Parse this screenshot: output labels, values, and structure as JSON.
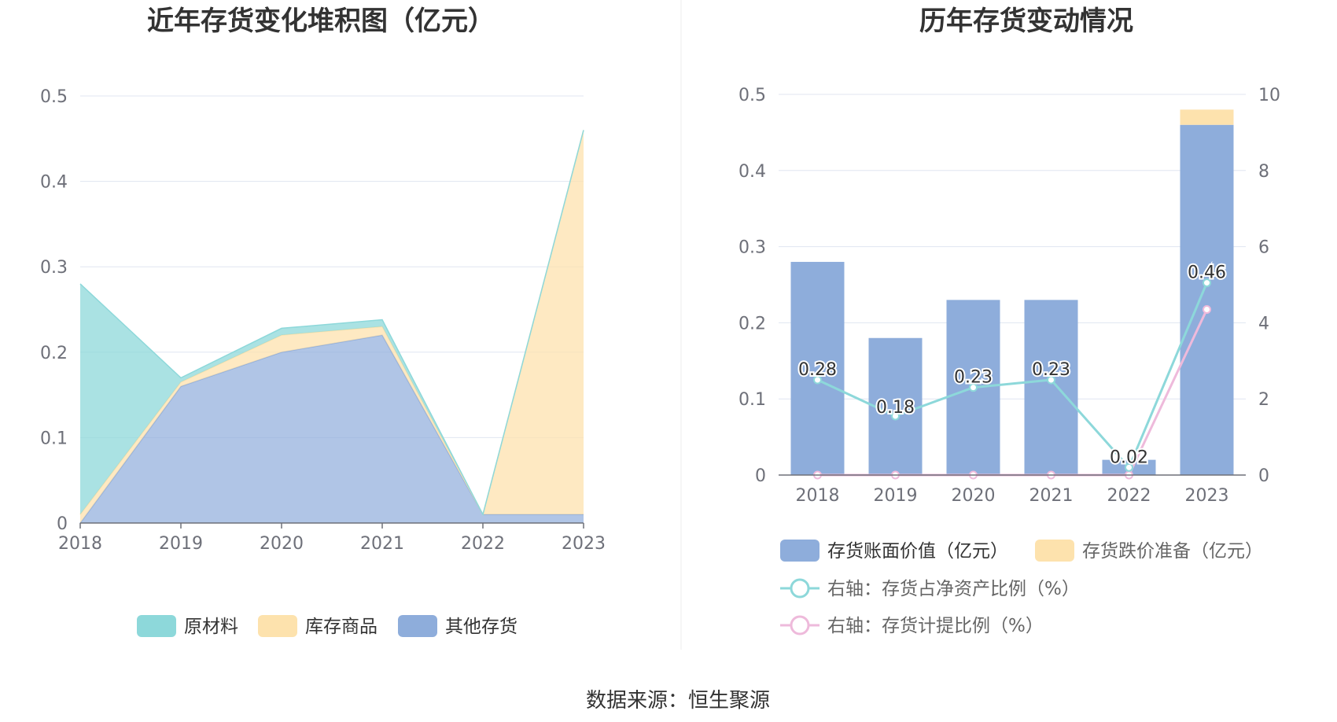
{
  "colors": {
    "raw": "#8dd8da",
    "goods": "#fde2ad",
    "other": "#8eaddb",
    "book": "#8eaddb",
    "reserve": "#fde2ad",
    "ratio_net": "#8dd8da",
    "ratio_prov": "#eebadb"
  },
  "source_text": "数据来源：恒生聚源",
  "chart_data": [
    {
      "type": "area",
      "title": "近年存货变化堆积图（亿元）",
      "x": [
        "2018",
        "2019",
        "2020",
        "2021",
        "2022",
        "2023"
      ],
      "ylim": [
        0,
        0.5
      ],
      "yticks": [
        "0",
        "0.1",
        "0.2",
        "0.3",
        "0.4",
        "0.5"
      ],
      "stacked": true,
      "grid": true,
      "legend_position": "bottom",
      "series": [
        {
          "name": "其他存货",
          "values": [
            0.0,
            0.16,
            0.2,
            0.22,
            0.01,
            0.01
          ]
        },
        {
          "name": "库存商品",
          "values": [
            0.01,
            0.005,
            0.02,
            0.01,
            0.0,
            0.45
          ]
        },
        {
          "name": "原材料",
          "values": [
            0.27,
            0.005,
            0.008,
            0.008,
            0.0,
            0.0
          ]
        }
      ]
    },
    {
      "type": "bar",
      "title": "历年存货变动情况",
      "x": [
        "2018",
        "2019",
        "2020",
        "2021",
        "2022",
        "2023"
      ],
      "ylim": [
        0,
        0.5
      ],
      "yticks": [
        "0",
        "0.1",
        "0.2",
        "0.3",
        "0.4",
        "0.5"
      ],
      "y2lim": [
        0,
        10
      ],
      "y2ticks": [
        "0",
        "2",
        "4",
        "6",
        "8",
        "10"
      ],
      "grid": true,
      "legend_position": "bottom",
      "bar_series": [
        {
          "name": "存货账面价值（亿元）",
          "values": [
            0.28,
            0.18,
            0.23,
            0.23,
            0.02,
            0.46
          ],
          "labels": [
            "0.28",
            "0.18",
            "0.23",
            "0.23",
            "0.02",
            "0.46"
          ]
        },
        {
          "name": "存货跌价准备（亿元）",
          "values": [
            0,
            0,
            0,
            0,
            0,
            0.02
          ]
        }
      ],
      "line_series": [
        {
          "name": "右轴：存货占净资产比例（%）",
          "values": [
            2.5,
            1.55,
            2.3,
            2.5,
            0.2,
            5.05
          ]
        },
        {
          "name": "右轴：存货计提比例（%）",
          "values": [
            0,
            0,
            0,
            0,
            0,
            4.35
          ]
        }
      ]
    }
  ]
}
